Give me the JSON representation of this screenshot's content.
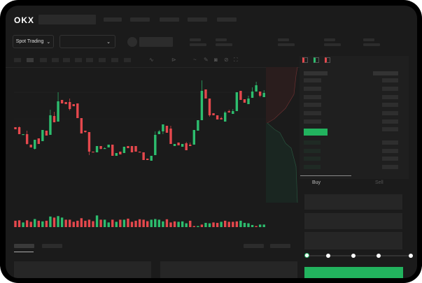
{
  "header": {
    "logo": "OKX"
  },
  "toolbar": {
    "market_type": "Spot Trading",
    "pair_select": ""
  },
  "order_panel": {
    "tabs": [
      "Buy",
      "Sell"
    ],
    "leverage_marks": [
      0,
      25,
      50,
      75,
      100
    ],
    "leverage_value": 0
  },
  "colors": {
    "up": "#2dbd6e",
    "down": "#e5484d",
    "background": "#1b1b1b",
    "accent": "#22b35e"
  },
  "chart_data": {
    "type": "candlestick",
    "candles": [
      [
        118,
        115,
        118,
        115
      ],
      [
        118,
        108,
        119,
        108
      ],
      [
        107,
        108,
        108,
        107
      ],
      [
        108,
        94,
        113,
        93
      ],
      [
        93,
        89,
        93,
        89
      ],
      [
        87,
        100,
        100,
        86
      ],
      [
        102,
        94,
        102,
        94
      ],
      [
        98,
        114,
        114,
        98
      ],
      [
        113,
        106,
        113,
        106
      ],
      [
        107,
        135,
        143,
        107
      ],
      [
        134,
        125,
        140,
        125
      ],
      [
        126,
        155,
        168,
        126
      ],
      [
        157,
        152,
        157,
        152
      ],
      [
        154,
        151,
        154,
        151
      ],
      [
        154,
        144,
        159,
        142
      ],
      [
        151,
        148,
        151,
        148
      ],
      [
        152,
        131,
        152,
        131
      ],
      [
        131,
        109,
        131,
        109
      ],
      [
        113,
        111,
        113,
        110
      ],
      [
        111,
        83,
        111,
        78
      ],
      [
        83,
        82,
        83,
        82
      ],
      [
        82,
        91,
        91,
        82
      ],
      [
        91,
        87,
        91,
        86
      ],
      [
        87,
        88,
        89,
        87
      ],
      [
        89,
        93,
        93,
        89
      ],
      [
        93,
        77,
        93,
        77
      ],
      [
        77,
        81,
        81,
        77
      ],
      [
        83,
        79,
        83,
        79
      ],
      [
        81,
        90,
        90,
        81
      ],
      [
        91,
        88,
        91,
        88
      ],
      [
        91,
        82,
        91,
        82
      ],
      [
        91,
        83,
        91,
        83
      ],
      [
        83,
        82,
        83,
        82
      ],
      [
        82,
        71,
        82,
        71
      ],
      [
        73,
        71,
        73,
        71
      ],
      [
        70,
        77,
        77,
        70
      ],
      [
        78,
        107,
        112,
        78
      ],
      [
        108,
        112,
        114,
        108
      ],
      [
        112,
        122,
        122,
        108
      ],
      [
        120,
        110,
        120,
        110
      ],
      [
        116,
        94,
        120,
        94
      ],
      [
        91,
        94,
        94,
        91
      ],
      [
        96,
        92,
        96,
        92
      ],
      [
        90,
        94,
        94,
        90
      ],
      [
        95,
        85,
        97,
        85
      ],
      [
        93,
        91,
        96,
        91
      ],
      [
        93,
        114,
        114,
        93
      ],
      [
        113,
        128,
        128,
        113
      ],
      [
        128,
        170,
        185,
        128
      ],
      [
        172,
        159,
        172,
        159
      ],
      [
        159,
        135,
        159,
        133
      ],
      [
        138,
        135,
        138,
        135
      ],
      [
        135,
        129,
        135,
        129
      ],
      [
        131,
        129,
        133,
        129
      ],
      [
        126,
        139,
        141,
        126
      ],
      [
        141,
        139,
        143,
        139
      ],
      [
        137,
        141,
        144,
        137
      ],
      [
        141,
        168,
        168,
        141
      ],
      [
        170,
        157,
        170,
        157
      ],
      [
        158,
        153,
        158,
        153
      ],
      [
        151,
        159,
        163,
        151
      ],
      [
        160,
        169,
        175,
        160
      ],
      [
        169,
        178,
        183,
        169
      ],
      [
        169,
        163,
        169,
        161
      ],
      [
        161,
        167,
        171,
        161
      ]
    ],
    "volume": [
      30,
      32,
      22,
      32,
      25,
      38,
      30,
      27,
      30,
      50,
      45,
      52,
      45,
      35,
      35,
      25,
      30,
      42,
      30,
      35,
      28,
      55,
      35,
      35,
      22,
      35,
      25,
      35,
      35,
      40,
      25,
      30,
      37,
      35,
      28,
      35,
      38,
      35,
      27,
      37,
      22,
      27,
      25,
      27,
      18,
      30,
      5,
      5,
      12,
      20,
      18,
      22,
      20,
      25,
      30,
      25,
      25,
      27,
      30,
      20,
      18,
      10,
      5,
      12,
      12
    ],
    "volume_up": [
      0,
      0,
      1,
      0,
      0,
      1,
      0,
      1,
      0,
      1,
      0,
      1,
      1,
      0,
      0,
      0,
      0,
      0,
      0,
      0,
      0,
      1,
      0,
      1,
      1,
      0,
      1,
      0,
      1,
      0,
      0,
      0,
      0,
      0,
      0,
      1,
      1,
      1,
      1,
      0,
      0,
      0,
      1,
      1,
      1,
      0,
      0,
      1,
      0,
      1,
      1,
      0,
      0,
      1,
      0,
      0,
      0,
      0,
      1,
      1,
      1,
      1,
      0,
      1,
      1
    ]
  }
}
